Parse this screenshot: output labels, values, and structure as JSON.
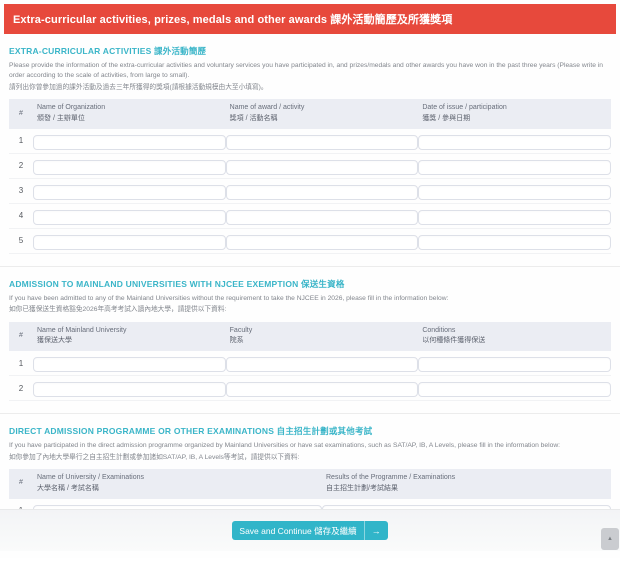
{
  "colors": {
    "header_bg": "#e7493c",
    "header_text": "#ffffff",
    "section_title_accent": "#3ab5c8",
    "table_header_bg": "#ebedf3",
    "button_bg": "#31b5c9"
  },
  "header": {
    "title": "Extra-curricular activities, prizes, medals and other awards  課外活動簡歷及所獲獎項"
  },
  "table_common": {
    "number_header": "#"
  },
  "sections": [
    {
      "id": "extra-curricular-activities",
      "title": "EXTRA-CURRICULAR ACTIVITIES 課外活動簡歷",
      "description_en": "Please provide the information of the extra-curricular activities and voluntary services you have participated in, and prizes/medals and other awards you have won in the past three years (Please write in order according to the scale of activities, from large to small).",
      "description_zh": "請列出你曾參加過的課外活動及過去三年所獲得的獎項(請根據活動規模由大至小填寫)。",
      "columns": [
        {
          "en": "Name of Organization",
          "zh": "頒發 / 主辦單位"
        },
        {
          "en": "Name of award / activity",
          "zh": "獎項 / 活動名稱"
        },
        {
          "en": "Date of issue / participation",
          "zh": "獲獎 / 參與日期"
        }
      ],
      "row_count": 5
    },
    {
      "id": "mainland-njcee-exemption",
      "title": "ADMISSION TO MAINLAND UNIVERSITIES WITH NJCEE EXEMPTION 保送生資格",
      "description_en": "If you have been admitted to any of the Mainland Universities without the requirement to take the NJCEE in 2026, please fill in the information below:",
      "description_zh": "如你已獲保送生資格豁免2026年高考考試入讀內地大學，請提供以下資料:",
      "columns": [
        {
          "en": "Name of Mainland University",
          "zh": "獲保送大學"
        },
        {
          "en": "Faculty",
          "zh": "院系"
        },
        {
          "en": "Conditions",
          "zh": "以何種條件獲得保送"
        }
      ],
      "row_count": 2
    },
    {
      "id": "direct-admission-programme",
      "title": "DIRECT ADMISSION PROGRAMME OR OTHER EXAMINATIONS 自主招生計劃或其他考試",
      "description_en": "If you have participated in the direct admission programme organized by Mainland Universities or have sat examinations, such as SAT/AP, IB, A Levels, please fill in the information below:",
      "description_zh": "如你參加了內地大學舉行之自主招生計劃或參加諸如SAT/AP, IB, A Levels等考試，請提供以下資料:",
      "columns": [
        {
          "en": "Name of University / Examinations",
          "zh": "大學名稱 / 考試名稱"
        },
        {
          "en": "Results of the Programme / Examinations",
          "zh": "自主招生計劃/考試結果"
        }
      ],
      "row_count": 2
    }
  ],
  "footer": {
    "save_button_label": "Save and Continue 儲存及繼續",
    "arrow_icon": "→"
  },
  "scroll_top": {
    "icon": "▲"
  }
}
